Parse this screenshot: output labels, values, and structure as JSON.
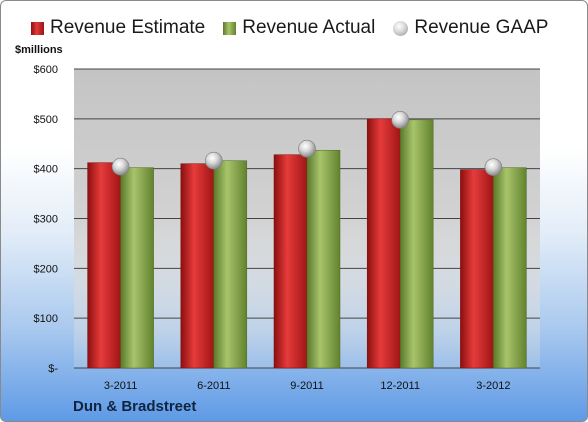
{
  "legend": {
    "estimate": "Revenue Estimate",
    "actual": "Revenue Actual",
    "gaap": "Revenue GAAP"
  },
  "unit_label": "$millions",
  "company": "Dun & Bradstreet",
  "colors": {
    "estimate": "#d42a2a",
    "actual": "#8fae55",
    "gaap": "#c8c8c8",
    "plot_bg": "#c9c9c9"
  },
  "chart_data": {
    "type": "bar",
    "categories": [
      "3-2011",
      "6-2011",
      "9-2011",
      "12-2011",
      "3-2012"
    ],
    "series": [
      {
        "name": "Revenue Estimate",
        "values": [
          412,
          410,
          428,
          500,
          398
        ]
      },
      {
        "name": "Revenue Actual",
        "values": [
          402,
          416,
          437,
          498,
          402
        ]
      },
      {
        "name": "Revenue GAAP",
        "values": [
          404,
          416,
          440,
          498,
          403
        ],
        "marker": "circle"
      }
    ],
    "ylabel": "$millions",
    "ylim": [
      0,
      600
    ],
    "yticks": [
      0,
      100,
      200,
      300,
      400,
      500,
      600
    ],
    "ytick_labels": [
      "$-",
      "$100",
      "$200",
      "$300",
      "$400",
      "$500",
      "$600"
    ],
    "grid": true,
    "legend_position": "top"
  }
}
